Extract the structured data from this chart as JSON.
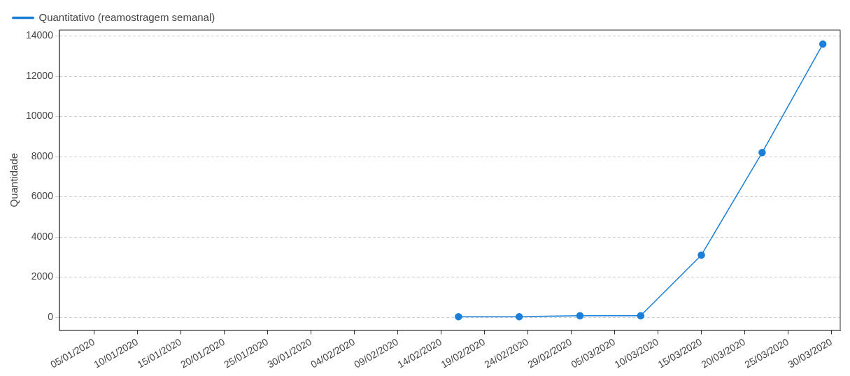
{
  "chart_data": {
    "type": "line",
    "ylabel": "Quantidade",
    "x": [
      "2020-02-16",
      "2020-02-23",
      "2020-03-01",
      "2020-03-08",
      "2020-03-15",
      "2020-03-22",
      "2020-03-29"
    ],
    "series": [
      {
        "name": "Quantitativo (reamostragem semanal)",
        "color": "#1a7fd9",
        "values": [
          30,
          30,
          80,
          80,
          3100,
          8200,
          13600
        ]
      }
    ],
    "xlim": [
      "2020-01-01",
      "2020-03-31"
    ],
    "xticks": [
      {
        "value": "2020-01-05",
        "label": "05/01/2020"
      },
      {
        "value": "2020-01-10",
        "label": "10/01/2020"
      },
      {
        "value": "2020-01-15",
        "label": "15/01/2020"
      },
      {
        "value": "2020-01-20",
        "label": "20/01/2020"
      },
      {
        "value": "2020-01-25",
        "label": "25/01/2020"
      },
      {
        "value": "2020-01-30",
        "label": "30/01/2020"
      },
      {
        "value": "2020-02-04",
        "label": "04/02/2020"
      },
      {
        "value": "2020-02-09",
        "label": "09/02/2020"
      },
      {
        "value": "2020-02-14",
        "label": "14/02/2020"
      },
      {
        "value": "2020-02-19",
        "label": "19/02/2020"
      },
      {
        "value": "2020-02-24",
        "label": "24/02/2020"
      },
      {
        "value": "2020-02-29",
        "label": "29/02/2020"
      },
      {
        "value": "2020-03-05",
        "label": "05/03/2020"
      },
      {
        "value": "2020-03-10",
        "label": "10/03/2020"
      },
      {
        "value": "2020-03-15",
        "label": "15/03/2020"
      },
      {
        "value": "2020-03-20",
        "label": "20/03/2020"
      },
      {
        "value": "2020-03-25",
        "label": "25/03/2020"
      },
      {
        "value": "2020-03-30",
        "label": "30/03/2020"
      }
    ],
    "ylim": [
      -640,
      14300
    ],
    "yticks": [
      0,
      2000,
      4000,
      6000,
      8000,
      10000,
      12000,
      14000
    ],
    "grid": "y",
    "legend": "top left",
    "marker": "circle",
    "line_style": "solid"
  }
}
